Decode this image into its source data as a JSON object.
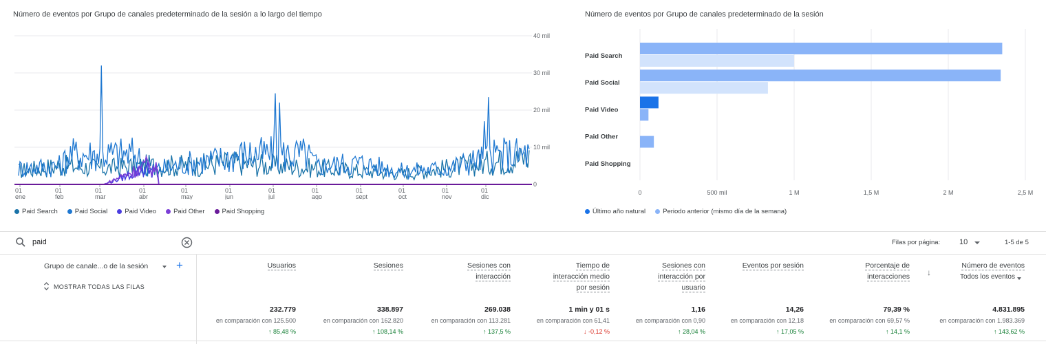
{
  "line_chart": {
    "title": "Número de eventos por Grupo de canales predeterminado de la sesión a lo largo del tiempo",
    "y_ticks": [
      "40 mil",
      "30 mil",
      "20 mil",
      "10 mil",
      "0"
    ],
    "x_ticks": [
      {
        "day": "01",
        "month": "ene"
      },
      {
        "day": "01",
        "month": "feb"
      },
      {
        "day": "01",
        "month": "mar"
      },
      {
        "day": "01",
        "month": "abr"
      },
      {
        "day": "01",
        "month": "may"
      },
      {
        "day": "01",
        "month": "jun"
      },
      {
        "day": "01",
        "month": "jul"
      },
      {
        "day": "01",
        "month": "ago"
      },
      {
        "day": "01",
        "month": "sept"
      },
      {
        "day": "01",
        "month": "oct"
      },
      {
        "day": "01",
        "month": "nov"
      },
      {
        "day": "01",
        "month": "dic"
      }
    ],
    "legend": [
      {
        "label": "Paid Search",
        "color": "#1a73a8"
      },
      {
        "label": "Paid Social",
        "color": "#1f78d1"
      },
      {
        "label": "Paid Video",
        "color": "#4a3de0"
      },
      {
        "label": "Paid Other",
        "color": "#7b3fd6"
      },
      {
        "label": "Paid Shopping",
        "color": "#6a1b9a"
      }
    ]
  },
  "bar_chart": {
    "title": "Número de eventos por Grupo de canales predeterminado de la sesión",
    "x_ticks": [
      "0",
      "500 mil",
      "1 M",
      "1,5 M",
      "2 M",
      "2,5 M"
    ],
    "legend": [
      {
        "label": "Último año natural",
        "color": "#1a73e8"
      },
      {
        "label": "Periodo anterior (mismo día de la semana)",
        "color": "#8ab4f8"
      }
    ]
  },
  "chart_data": [
    {
      "type": "line",
      "title": "Número de eventos por Grupo de canales predeterminado de la sesión a lo largo del tiempo",
      "x": [
        "01 ene",
        "01 feb",
        "01 mar",
        "01 abr",
        "01 may",
        "01 jun",
        "01 jul",
        "01 ago",
        "01 sept",
        "01 oct",
        "01 nov",
        "01 dic"
      ],
      "ylim": [
        0,
        40000
      ],
      "series": [
        {
          "name": "Paid Search",
          "values": [
            5000,
            7000,
            6000,
            7000,
            7000,
            8000,
            7000,
            6000,
            5000,
            4000,
            6000,
            8000
          ]
        },
        {
          "name": "Paid Social",
          "values": [
            6000,
            7000,
            32000,
            5000,
            8000,
            10000,
            24000,
            7000,
            8000,
            5000,
            6000,
            10000
          ]
        },
        {
          "name": "Paid Video",
          "values": [
            0,
            0,
            0,
            5000,
            0,
            0,
            0,
            0,
            0,
            0,
            0,
            0
          ]
        },
        {
          "name": "Paid Other",
          "values": [
            0,
            0,
            0,
            6000,
            0,
            0,
            0,
            0,
            0,
            0,
            0,
            0
          ]
        },
        {
          "name": "Paid Shopping",
          "values": [
            0,
            0,
            0,
            0,
            0,
            0,
            0,
            0,
            0,
            0,
            0,
            0
          ]
        }
      ]
    },
    {
      "type": "bar",
      "title": "Número de eventos por Grupo de canales predeterminado de la sesión",
      "categories": [
        "Paid Search",
        "Paid Social",
        "Paid Video",
        "Paid Other",
        "Paid Shopping"
      ],
      "xlim": [
        0,
        2500000
      ],
      "series": [
        {
          "name": "Último año natural",
          "values": [
            2350000,
            2340000,
            120000,
            0,
            0
          ]
        },
        {
          "name": "Periodo anterior (mismo día de la semana)",
          "values": [
            1000000,
            830000,
            55000,
            90000,
            0
          ]
        }
      ]
    }
  ],
  "search": {
    "value": "paid",
    "clear_icon": "clear-circle-icon"
  },
  "pagination": {
    "rows_label": "Filas por página:",
    "rows_value": "10",
    "range": "1-5 de 5"
  },
  "table": {
    "dimension_header": "Grupo de canale...o de la sesión",
    "show_all_rows": "MOSTRAR TODAS LAS FILAS",
    "columns": [
      {
        "header": [
          "Usuarios"
        ],
        "total": "232.779",
        "cmp": "en comparación con 125.500",
        "chg": "↑ 85,48 %",
        "dir": "up"
      },
      {
        "header": [
          "Sesiones"
        ],
        "total": "338.897",
        "cmp": "en comparación con 162.820",
        "chg": "↑ 108,14 %",
        "dir": "up"
      },
      {
        "header": [
          "Sesiones con",
          "interacción"
        ],
        "total": "269.038",
        "cmp": "en comparación con 113.281",
        "chg": "↑ 137,5 %",
        "dir": "up"
      },
      {
        "header": [
          "Tiempo de",
          "interacción medio",
          "por sesión"
        ],
        "total": "1 min y 01 s",
        "cmp": "en comparación con 61,41",
        "chg": "↓ -0,12 %",
        "dir": "down"
      },
      {
        "header": [
          "Sesiones con",
          "interacción por",
          "usuario"
        ],
        "total": "1,16",
        "cmp": "en comparación con 0,90",
        "chg": "↑ 28,04 %",
        "dir": "up"
      },
      {
        "header": [
          "Eventos por sesión"
        ],
        "total": "14,26",
        "cmp": "en comparación con 12,18",
        "chg": "↑ 17,05 %",
        "dir": "up"
      },
      {
        "header": [
          "Porcentaje de",
          "interacciones"
        ],
        "total": "79,39 %",
        "cmp": "en comparación con 69,57 %",
        "chg": "↑ 14,1 %",
        "dir": "up"
      },
      {
        "header": [
          "Número de eventos"
        ],
        "sub": "Todos los eventos",
        "total": "4.831.895",
        "cmp": "en comparación con 1.983.369",
        "chg": "↑ 143,62 %",
        "dir": "up"
      }
    ]
  }
}
